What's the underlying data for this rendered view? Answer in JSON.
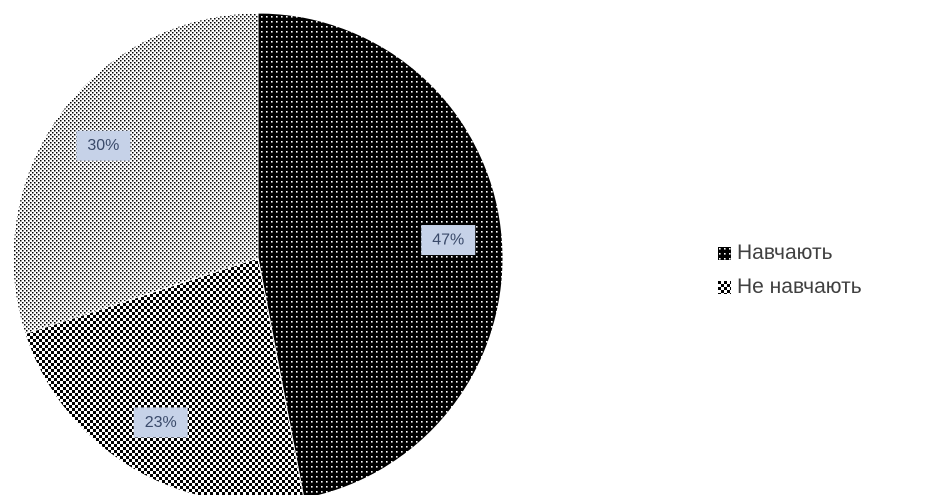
{
  "chart_data": {
    "type": "pie",
    "title": "",
    "slices": [
      {
        "label": "",
        "value": 47,
        "display": "47%",
        "pattern": "dense"
      },
      {
        "label": "",
        "value": 23,
        "display": "23%",
        "pattern": "medium"
      },
      {
        "label": "",
        "value": 30,
        "display": "30%",
        "pattern": "light"
      }
    ],
    "legend": {
      "placement": "right",
      "entries": [
        {
          "label": "Навчають",
          "pattern": "dense"
        },
        {
          "label": "Не навчають",
          "pattern": "medium"
        }
      ]
    },
    "colors": {
      "dense_bg": "#000000",
      "dense_dot": "#ffffff",
      "medium_bg": "#ffffff",
      "medium_dot": "#000000",
      "light_bg": "#ffffff",
      "light_dot": "#000000",
      "label_background": "#c6d2e8",
      "label_text": "#3a4a6a",
      "legend_text": "#404040"
    }
  }
}
